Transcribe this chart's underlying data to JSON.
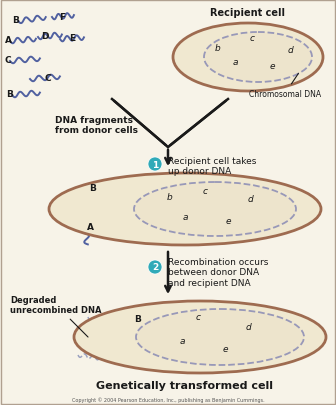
{
  "bg_color": "#f7f3e8",
  "cell_fill": "#f0e8d0",
  "cell_edge": "#9e6b50",
  "chrom_fill": "#ede4cc",
  "chrom_edge": "#9898b8",
  "dna_color": "#5060a0",
  "arrow_color": "#1a1a1a",
  "step_circle_color": "#30aab8",
  "copyright": "Copyright © 2004 Pearson Education, Inc., publishing as Benjamin Cummings.",
  "top_right_label": "Recipient cell",
  "chromosomal_dna_label": "Chromosomal DNA",
  "step1_label": "Recipient cell takes\nup donor DNA",
  "degraded_label": "Degraded\nunrecombined DNA",
  "step2_label": "Recombination occurs\nbetween donor DNA\nand recipient DNA",
  "bottom_label": "Genetically transformed cell"
}
